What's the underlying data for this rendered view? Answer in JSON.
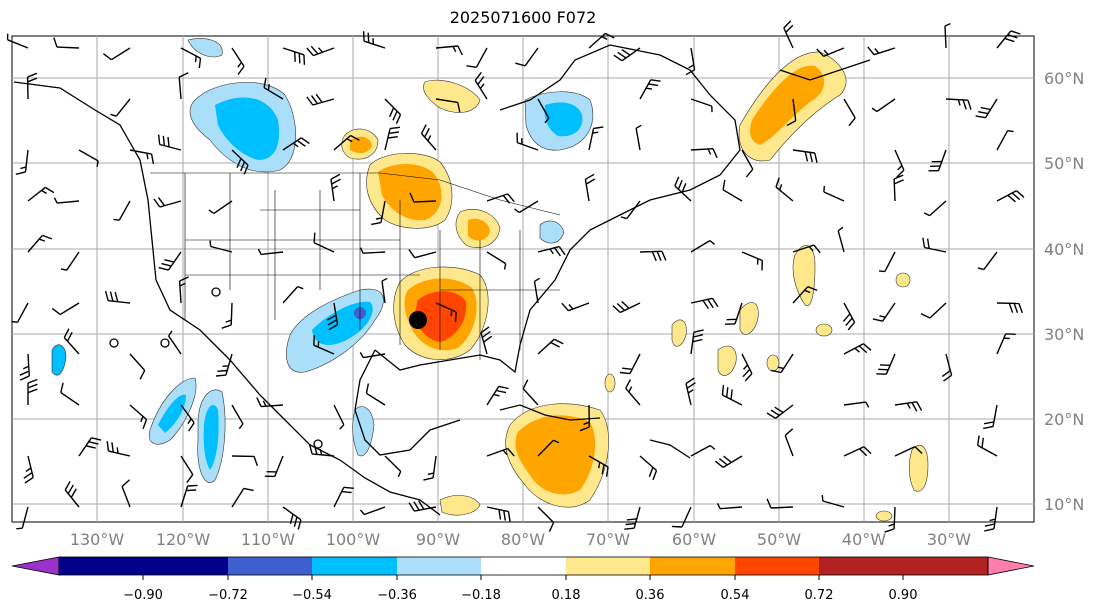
{
  "title": "2025071600 F072",
  "map": {
    "lat_labels": [
      "60°N",
      "50°N",
      "40°N",
      "30°N",
      "20°N",
      "10°N"
    ],
    "lon_labels": [
      "130°W",
      "120°W",
      "110°W",
      "100°W",
      "90°W",
      "80°W",
      "70°W",
      "60°W",
      "50°W",
      "40°W",
      "30°W"
    ],
    "marker": "station-dot"
  },
  "colorbar": {
    "ticks": [
      "−0.90",
      "−0.72",
      "−0.54",
      "−0.36",
      "−0.18",
      "0.18",
      "0.36",
      "0.54",
      "0.72",
      "0.90"
    ],
    "colors": [
      "#9932CC",
      "#00008B",
      "#3F5FCF",
      "#00BFFF",
      "#ABDEF8",
      "#FFFFFF",
      "#FFE88C",
      "#FFA500",
      "#FF4500",
      "#B22222",
      "#FF7FAA"
    ]
  }
}
